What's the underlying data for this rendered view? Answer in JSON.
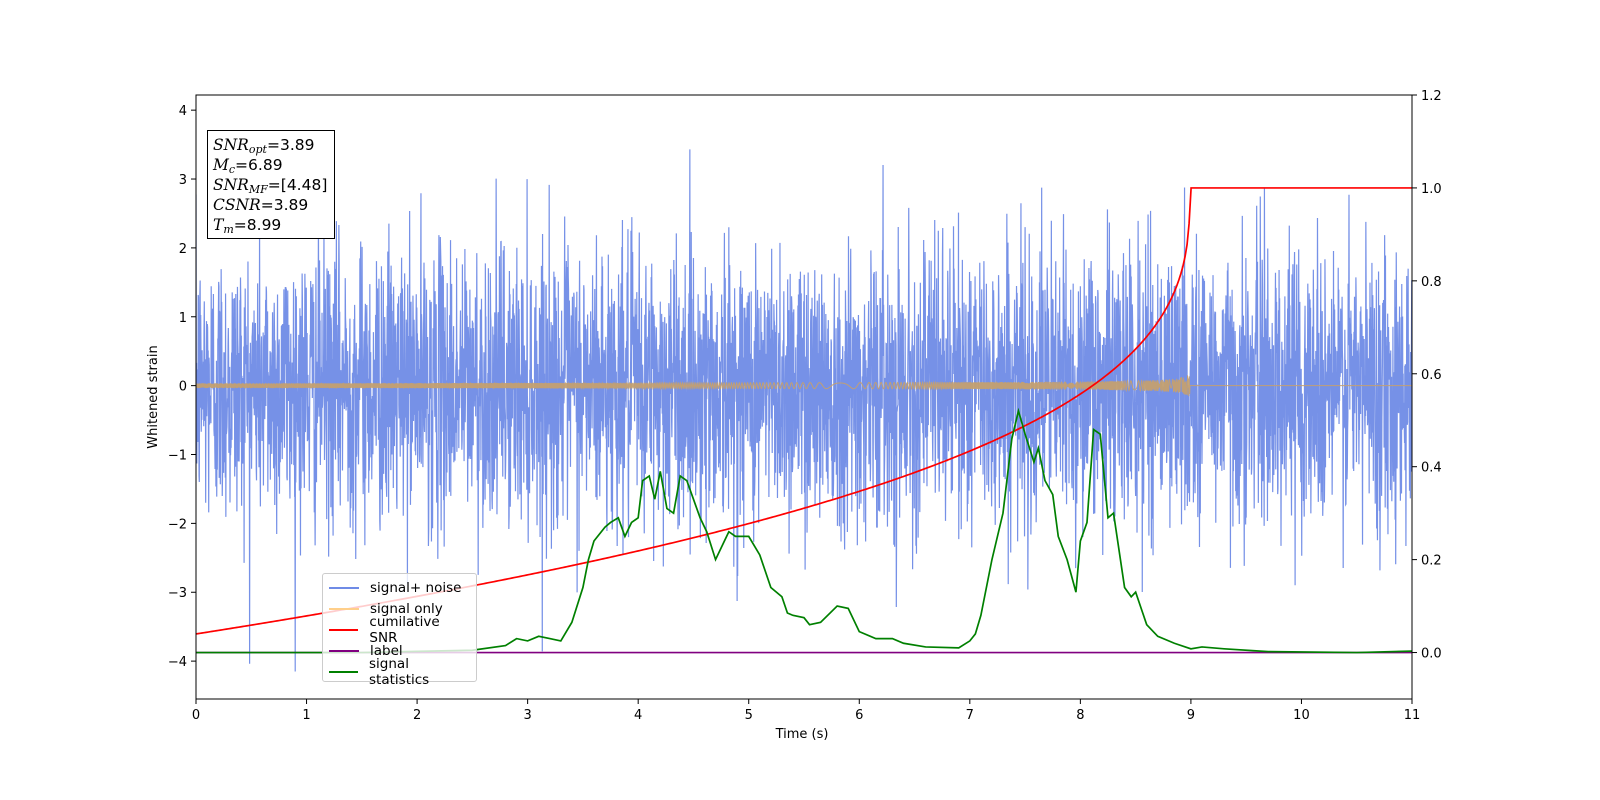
{
  "chart_data": {
    "type": "line",
    "xlabel": "Time (s)",
    "ylabel": "Whitened strain",
    "xlim": [
      0,
      11
    ],
    "ylim_left": [
      -4.55,
      4.22
    ],
    "ylim_right": [
      -0.1,
      1.2
    ],
    "xticks": [
      "0",
      "1",
      "2",
      "3",
      "4",
      "5",
      "6",
      "7",
      "8",
      "9",
      "10",
      "11"
    ],
    "yticks_left": [
      "−4",
      "−3",
      "−2",
      "−1",
      "0",
      "1",
      "2",
      "3",
      "4"
    ],
    "yticks_right": [
      "0.0",
      "0.2",
      "0.4",
      "0.6",
      "0.8",
      "1.0",
      "1.2"
    ],
    "grid": false,
    "legend_position": "lower-left",
    "stats": {
      "snr_opt": "3.89",
      "mc": "6.89",
      "snr_mf": "[4.48]",
      "csnr": "3.89",
      "tm": "8.99"
    },
    "series": [
      {
        "name": "signal+ noise",
        "axis": "left",
        "color": "#6f8be6",
        "description_values": "white noise, std ≈ 1, x from 0 to 11"
      },
      {
        "name": "signal only",
        "axis": "left",
        "color": "#c4a070",
        "chirp": {
          "t_merge": 8.99,
          "amp_at_merge": 0.38
        }
      },
      {
        "name": "cumilative SNR",
        "axis": "right",
        "color": "#ff0000",
        "x": [
          0,
          1,
          2,
          3,
          4,
          5,
          6,
          7,
          7.5,
          8,
          8.3,
          8.6,
          8.8,
          8.9,
          8.99,
          11
        ],
        "y": [
          0.04,
          0.09,
          0.13,
          0.18,
          0.23,
          0.28,
          0.34,
          0.42,
          0.47,
          0.54,
          0.6,
          0.7,
          0.8,
          0.88,
          1.0,
          1.0
        ]
      },
      {
        "name": "label",
        "axis": "right",
        "color": "#800080",
        "x": [
          0,
          11
        ],
        "y": [
          0,
          0
        ]
      },
      {
        "name": "signal statistics",
        "axis": "right",
        "color": "#008000",
        "x": [
          0,
          1.5,
          2.5,
          2.8,
          2.9,
          3.0,
          3.1,
          3.2,
          3.3,
          3.4,
          3.5,
          3.55,
          3.6,
          3.7,
          3.75,
          3.82,
          3.88,
          3.94,
          4.0,
          4.04,
          4.1,
          4.15,
          4.2,
          4.26,
          4.32,
          4.38,
          4.44,
          4.5,
          4.56,
          4.62,
          4.7,
          4.78,
          4.82,
          4.88,
          5.0,
          5.1,
          5.2,
          5.3,
          5.35,
          5.4,
          5.5,
          5.55,
          5.65,
          5.8,
          5.9,
          6.0,
          6.15,
          6.3,
          6.4,
          6.6,
          6.9,
          7.0,
          7.05,
          7.1,
          7.2,
          7.3,
          7.38,
          7.44,
          7.5,
          7.58,
          7.62,
          7.68,
          7.75,
          7.8,
          7.88,
          7.96,
          8.0,
          8.06,
          8.12,
          8.18,
          8.25,
          8.3,
          8.4,
          8.46,
          8.5,
          8.6,
          8.7,
          8.85,
          9.0,
          9.1,
          9.3,
          9.7,
          10.5,
          11.0
        ],
        "y": [
          0.0,
          0.0,
          0.005,
          0.015,
          0.03,
          0.025,
          0.035,
          0.03,
          0.025,
          0.065,
          0.14,
          0.2,
          0.24,
          0.27,
          0.28,
          0.29,
          0.25,
          0.28,
          0.29,
          0.37,
          0.38,
          0.33,
          0.39,
          0.31,
          0.3,
          0.38,
          0.37,
          0.33,
          0.29,
          0.26,
          0.2,
          0.24,
          0.26,
          0.25,
          0.25,
          0.21,
          0.14,
          0.12,
          0.085,
          0.08,
          0.075,
          0.06,
          0.065,
          0.1,
          0.095,
          0.045,
          0.03,
          0.03,
          0.02,
          0.012,
          0.01,
          0.025,
          0.04,
          0.08,
          0.2,
          0.3,
          0.46,
          0.52,
          0.47,
          0.41,
          0.44,
          0.37,
          0.34,
          0.25,
          0.2,
          0.13,
          0.24,
          0.28,
          0.48,
          0.47,
          0.29,
          0.3,
          0.14,
          0.12,
          0.13,
          0.06,
          0.035,
          0.02,
          0.008,
          0.012,
          0.008,
          0.002,
          0.0,
          0.003
        ]
      }
    ]
  }
}
